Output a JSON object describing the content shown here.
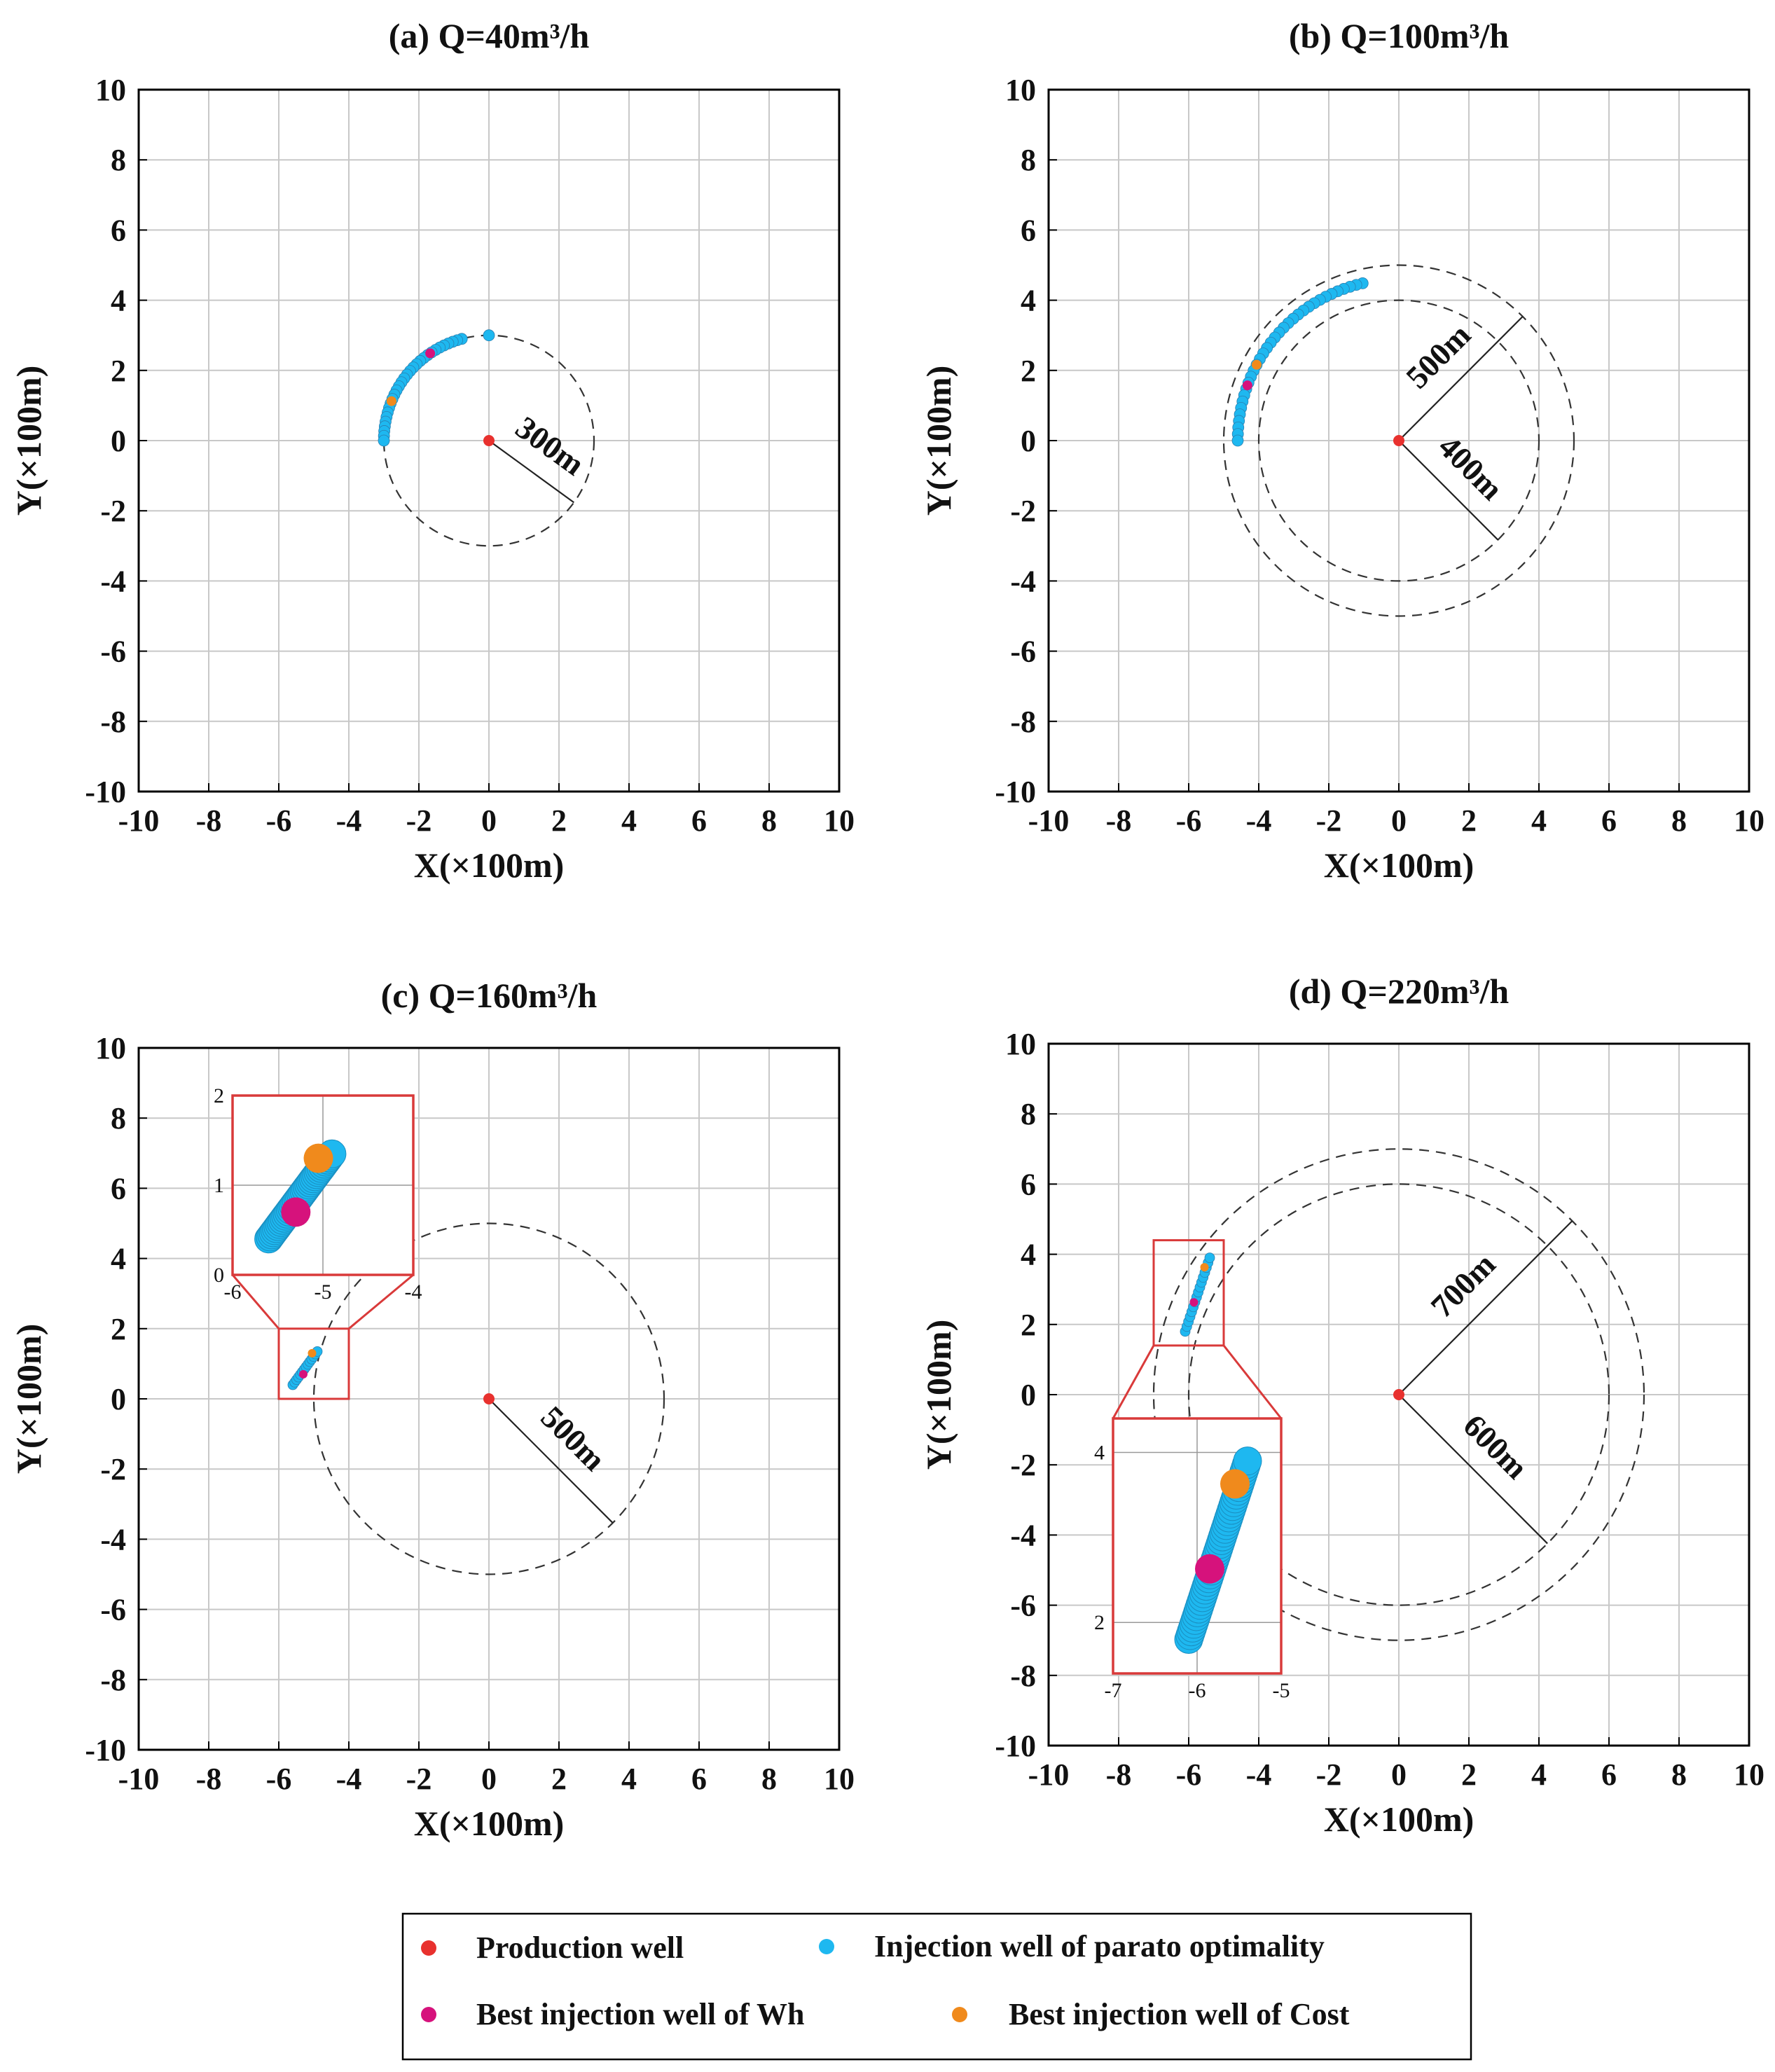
{
  "colors": {
    "production": "#e8312e",
    "injection": "#1eb8f0",
    "best_wh": "#d6127c",
    "best_cost": "#f08a1c",
    "inset_frame": "#d93a3a",
    "grid": "#c8c8c8",
    "axes": "#000000"
  },
  "chart_data": [
    {
      "type": "scatter",
      "title": "(a) Q=40m³/h",
      "xlabel": "X(×100m)",
      "ylabel": "Y(×100m)",
      "xlim": [
        -10,
        10
      ],
      "ylim": [
        -10,
        10
      ],
      "xticks": [
        "-10",
        "-8",
        "-6",
        "-4",
        "-2",
        "0",
        "2",
        "4",
        "6",
        "8",
        "10"
      ],
      "yticks": [
        "-10",
        "-8",
        "-6",
        "-4",
        "-2",
        "0",
        "2",
        "4",
        "6",
        "8",
        "10"
      ],
      "grid": true,
      "circles": [
        {
          "radius": 3,
          "label": "300m",
          "angle_deg": -36
        }
      ],
      "production_well": [
        0,
        0
      ],
      "injection_arc": {
        "radius": 3,
        "start_deg": 90,
        "end_deg": 180,
        "count": 30,
        "pareto_start_deg": 105,
        "isolated_deg": 90
      },
      "best_wh_deg": 124,
      "best_cost_deg": 158,
      "inset": null
    },
    {
      "type": "scatter",
      "title": "(b) Q=100m³/h",
      "xlabel": "X(×100m)",
      "ylabel": "Y(×100m)",
      "xlim": [
        -10,
        10
      ],
      "ylim": [
        -10,
        10
      ],
      "xticks": [
        "-10",
        "-8",
        "-6",
        "-4",
        "-2",
        "0",
        "2",
        "4",
        "6",
        "8",
        "10"
      ],
      "yticks": [
        "-10",
        "-8",
        "-6",
        "-4",
        "-2",
        "0",
        "2",
        "4",
        "6",
        "8",
        "10"
      ],
      "grid": true,
      "circles": [
        {
          "radius": 5,
          "label": "500m",
          "angle_deg": 45
        },
        {
          "radius": 4,
          "label": "400m",
          "angle_deg": -45
        }
      ],
      "production_well": [
        0,
        0
      ],
      "injection_arc": {
        "radius": 4.6,
        "start_deg": 103,
        "end_deg": 180,
        "count": 34
      },
      "best_wh_deg": 160,
      "best_cost_deg": 152,
      "inset": null
    },
    {
      "type": "scatter",
      "title": "(c) Q=160m³/h",
      "xlabel": "X(×100m)",
      "ylabel": "Y(×100m)",
      "xlim": [
        -10,
        10
      ],
      "ylim": [
        -10,
        10
      ],
      "xticks": [
        "-10",
        "-8",
        "-6",
        "-4",
        "-2",
        "0",
        "2",
        "4",
        "6",
        "8",
        "10"
      ],
      "yticks": [
        "-10",
        "-8",
        "-6",
        "-4",
        "-2",
        "0",
        "2",
        "4",
        "6",
        "8",
        "10"
      ],
      "grid": true,
      "circles": [
        {
          "radius": 5,
          "label": "500m",
          "angle_deg": -45
        }
      ],
      "production_well": [
        0,
        0
      ],
      "cluster": {
        "start": [
          -5.6,
          0.4
        ],
        "end": [
          -4.9,
          1.35
        ],
        "count": 14
      },
      "best_wh": [
        -5.3,
        0.7
      ],
      "best_cost": [
        -5.05,
        1.3
      ],
      "inset": {
        "zoom_box": {
          "x": [
            -6,
            -4
          ],
          "y": [
            0,
            2
          ]
        },
        "xticks": [
          "-6",
          "-5",
          "-4"
        ],
        "yticks": [
          "0",
          "1",
          "2"
        ]
      }
    },
    {
      "type": "scatter",
      "title": "(d) Q=220m³/h",
      "xlabel": "X(×100m)",
      "ylabel": "Y(×100m)",
      "xlim": [
        -10,
        10
      ],
      "ylim": [
        -10,
        10
      ],
      "xticks": [
        "-10",
        "-8",
        "-6",
        "-4",
        "-2",
        "0",
        "2",
        "4",
        "6",
        "8",
        "10"
      ],
      "yticks": [
        "-10",
        "-8",
        "-6",
        "-4",
        "-2",
        "0",
        "2",
        "4",
        "6",
        "8",
        "10"
      ],
      "grid": true,
      "circles": [
        {
          "radius": 7,
          "label": "700m",
          "angle_deg": 45
        },
        {
          "radius": 6,
          "label": "600m",
          "angle_deg": -45
        }
      ],
      "production_well": [
        0,
        0
      ],
      "cluster": {
        "start": [
          -6.1,
          1.8
        ],
        "end": [
          -5.4,
          3.9
        ],
        "count": 16
      },
      "best_wh": [
        -5.85,
        2.63
      ],
      "best_cost": [
        -5.55,
        3.63
      ],
      "inset": {
        "zoom_box": {
          "x": [
            -7,
            -5
          ],
          "y": [
            1.4,
            4.4
          ]
        },
        "xticks": [
          "-7",
          "-6",
          "-5"
        ],
        "yticks": [
          "2",
          "4"
        ]
      }
    }
  ],
  "legend": {
    "items": [
      {
        "label": "Production well",
        "key": "production"
      },
      {
        "label": "Injection well of parato optimality",
        "key": "injection"
      },
      {
        "label": "Best injection well of Wh",
        "key": "best_wh"
      },
      {
        "label": "Best injection well of  Cost",
        "key": "best_cost"
      }
    ]
  }
}
